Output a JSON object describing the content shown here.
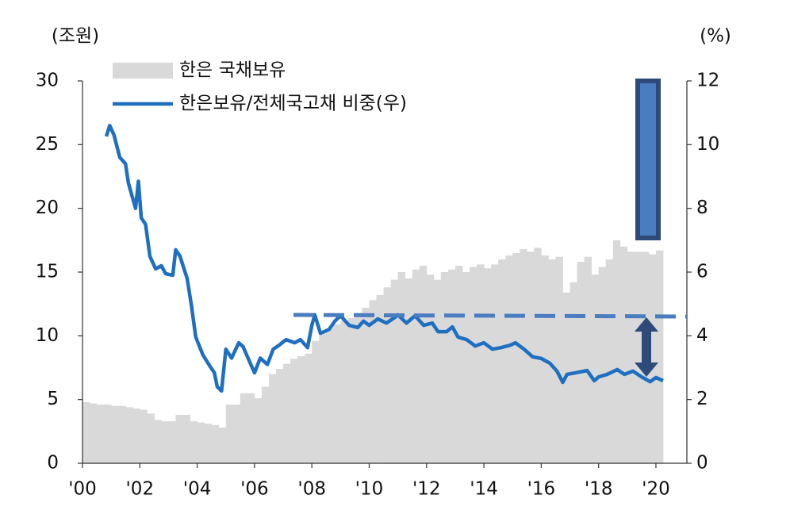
{
  "chart_data": {
    "type": "combo",
    "ylabel": "(조원)",
    "y2label": "(%)",
    "xlim": [
      2000,
      2021.08
    ],
    "xticks": [
      {
        "value": 2000,
        "label": "'00"
      },
      {
        "value": 2002,
        "label": "'02"
      },
      {
        "value": 2004,
        "label": "'04"
      },
      {
        "value": 2006,
        "label": "'06"
      },
      {
        "value": 2008,
        "label": "'08"
      },
      {
        "value": 2010,
        "label": "'10"
      },
      {
        "value": 2012,
        "label": "'12"
      },
      {
        "value": 2014,
        "label": "'14"
      },
      {
        "value": 2016,
        "label": "'16"
      },
      {
        "value": 2018,
        "label": "'18"
      },
      {
        "value": 2020,
        "label": "'20"
      }
    ],
    "ylim": [
      0,
      30
    ],
    "yticks": [
      0,
      5,
      10,
      15,
      20,
      25,
      30
    ],
    "y2lim": [
      0,
      12
    ],
    "y2ticks": [
      0,
      2,
      4,
      6,
      8,
      10,
      12
    ],
    "legend": "top-left",
    "series": [
      {
        "name": "한은 국채보유",
        "type": "area",
        "color": "#d9d9d9",
        "x": [
          2000.0,
          2000.25,
          2000.5,
          2000.75,
          2001.0,
          2001.25,
          2001.5,
          2001.75,
          2002.0,
          2002.25,
          2002.5,
          2002.75,
          2003.0,
          2003.25,
          2003.5,
          2003.75,
          2004.0,
          2004.25,
          2004.5,
          2004.75,
          2005.0,
          2005.25,
          2005.5,
          2005.75,
          2006.0,
          2006.25,
          2006.5,
          2006.75,
          2007.0,
          2007.25,
          2007.5,
          2007.75,
          2008.0,
          2008.25,
          2008.5,
          2008.75,
          2009.0,
          2009.25,
          2009.5,
          2009.75,
          2010.0,
          2010.25,
          2010.5,
          2010.75,
          2011.0,
          2011.25,
          2011.5,
          2011.75,
          2012.0,
          2012.25,
          2012.5,
          2012.75,
          2013.0,
          2013.25,
          2013.5,
          2013.75,
          2014.0,
          2014.25,
          2014.5,
          2014.75,
          2015.0,
          2015.25,
          2015.5,
          2015.75,
          2016.0,
          2016.25,
          2016.5,
          2016.75,
          2017.0,
          2017.25,
          2017.5,
          2017.75,
          2018.0,
          2018.25,
          2018.5,
          2018.75,
          2019.0,
          2019.25,
          2019.5,
          2019.75,
          2020.0
        ],
        "values": [
          4.8,
          4.7,
          4.6,
          4.6,
          4.5,
          4.5,
          4.4,
          4.3,
          4.2,
          3.9,
          3.4,
          3.3,
          3.3,
          3.8,
          3.8,
          3.3,
          3.2,
          3.1,
          3.0,
          2.8,
          4.6,
          4.6,
          5.5,
          5.5,
          5.1,
          6.0,
          7.0,
          7.4,
          7.8,
          8.2,
          8.4,
          8.6,
          9.6,
          10.2,
          10.6,
          10.9,
          11.2,
          11.4,
          11.8,
          12.2,
          12.8,
          13.2,
          13.8,
          14.4,
          15.0,
          14.5,
          15.2,
          15.5,
          14.8,
          14.4,
          15.0,
          15.2,
          15.5,
          15.0,
          15.4,
          15.6,
          15.3,
          15.6,
          16.0,
          16.3,
          16.5,
          16.8,
          16.6,
          16.9,
          16.3,
          16.0,
          16.2,
          13.4,
          14.2,
          15.8,
          16.2,
          14.8,
          15.4,
          16.0,
          17.5,
          17.0,
          16.6,
          16.6,
          16.6,
          16.4,
          16.7
        ]
      },
      {
        "name": "한은보유/전체국고채 비중(우)",
        "type": "line",
        "color": "#1f6fc1",
        "axis": "y2",
        "x": [
          2000.83,
          2000.95,
          2001.1,
          2001.3,
          2001.5,
          2001.6,
          2001.85,
          2001.95,
          2002.05,
          2002.2,
          2002.35,
          2002.55,
          2002.75,
          2002.9,
          2003.15,
          2003.25,
          2003.4,
          2003.65,
          2003.8,
          2003.95,
          2004.2,
          2004.45,
          2004.6,
          2004.7,
          2004.85,
          2005.0,
          2005.2,
          2005.45,
          2005.6,
          2005.9,
          2006.0,
          2006.2,
          2006.45,
          2006.65,
          2006.85,
          2007.1,
          2007.4,
          2007.6,
          2007.85,
          2008.0,
          2008.1,
          2008.3,
          2008.6,
          2008.8,
          2009.0,
          2009.3,
          2009.6,
          2009.8,
          2010.0,
          2010.3,
          2010.6,
          2010.9,
          2011.0,
          2011.3,
          2011.6,
          2011.9,
          2012.2,
          2012.4,
          2012.7,
          2012.9,
          2013.1,
          2013.4,
          2013.7,
          2014.0,
          2014.3,
          2014.6,
          2014.9,
          2015.1,
          2015.4,
          2015.7,
          2016.0,
          2016.3,
          2016.55,
          2016.75,
          2016.9,
          2017.2,
          2017.6,
          2017.85,
          2018.0,
          2018.3,
          2018.65,
          2018.9,
          2019.2,
          2019.5,
          2019.8,
          2020.0,
          2020.25
        ],
        "values": [
          10.26,
          10.6,
          10.3,
          9.6,
          9.4,
          8.8,
          8.0,
          8.85,
          7.7,
          7.5,
          6.5,
          6.1,
          6.2,
          5.95,
          5.9,
          6.7,
          6.5,
          5.8,
          4.95,
          3.96,
          3.4,
          3.04,
          2.84,
          2.4,
          2.27,
          3.58,
          3.3,
          3.78,
          3.66,
          3.04,
          2.84,
          3.3,
          3.1,
          3.58,
          3.7,
          3.88,
          3.78,
          3.88,
          3.63,
          4.33,
          4.66,
          4.08,
          4.2,
          4.46,
          4.63,
          4.33,
          4.26,
          4.46,
          4.33,
          4.53,
          4.4,
          4.58,
          4.66,
          4.4,
          4.63,
          4.33,
          4.4,
          4.13,
          4.13,
          4.28,
          3.96,
          3.88,
          3.68,
          3.78,
          3.58,
          3.63,
          3.7,
          3.78,
          3.58,
          3.34,
          3.29,
          3.14,
          2.89,
          2.54,
          2.79,
          2.84,
          2.91,
          2.59,
          2.71,
          2.79,
          2.94,
          2.79,
          2.89,
          2.71,
          2.56,
          2.69,
          2.59
        ]
      }
    ]
  }
}
